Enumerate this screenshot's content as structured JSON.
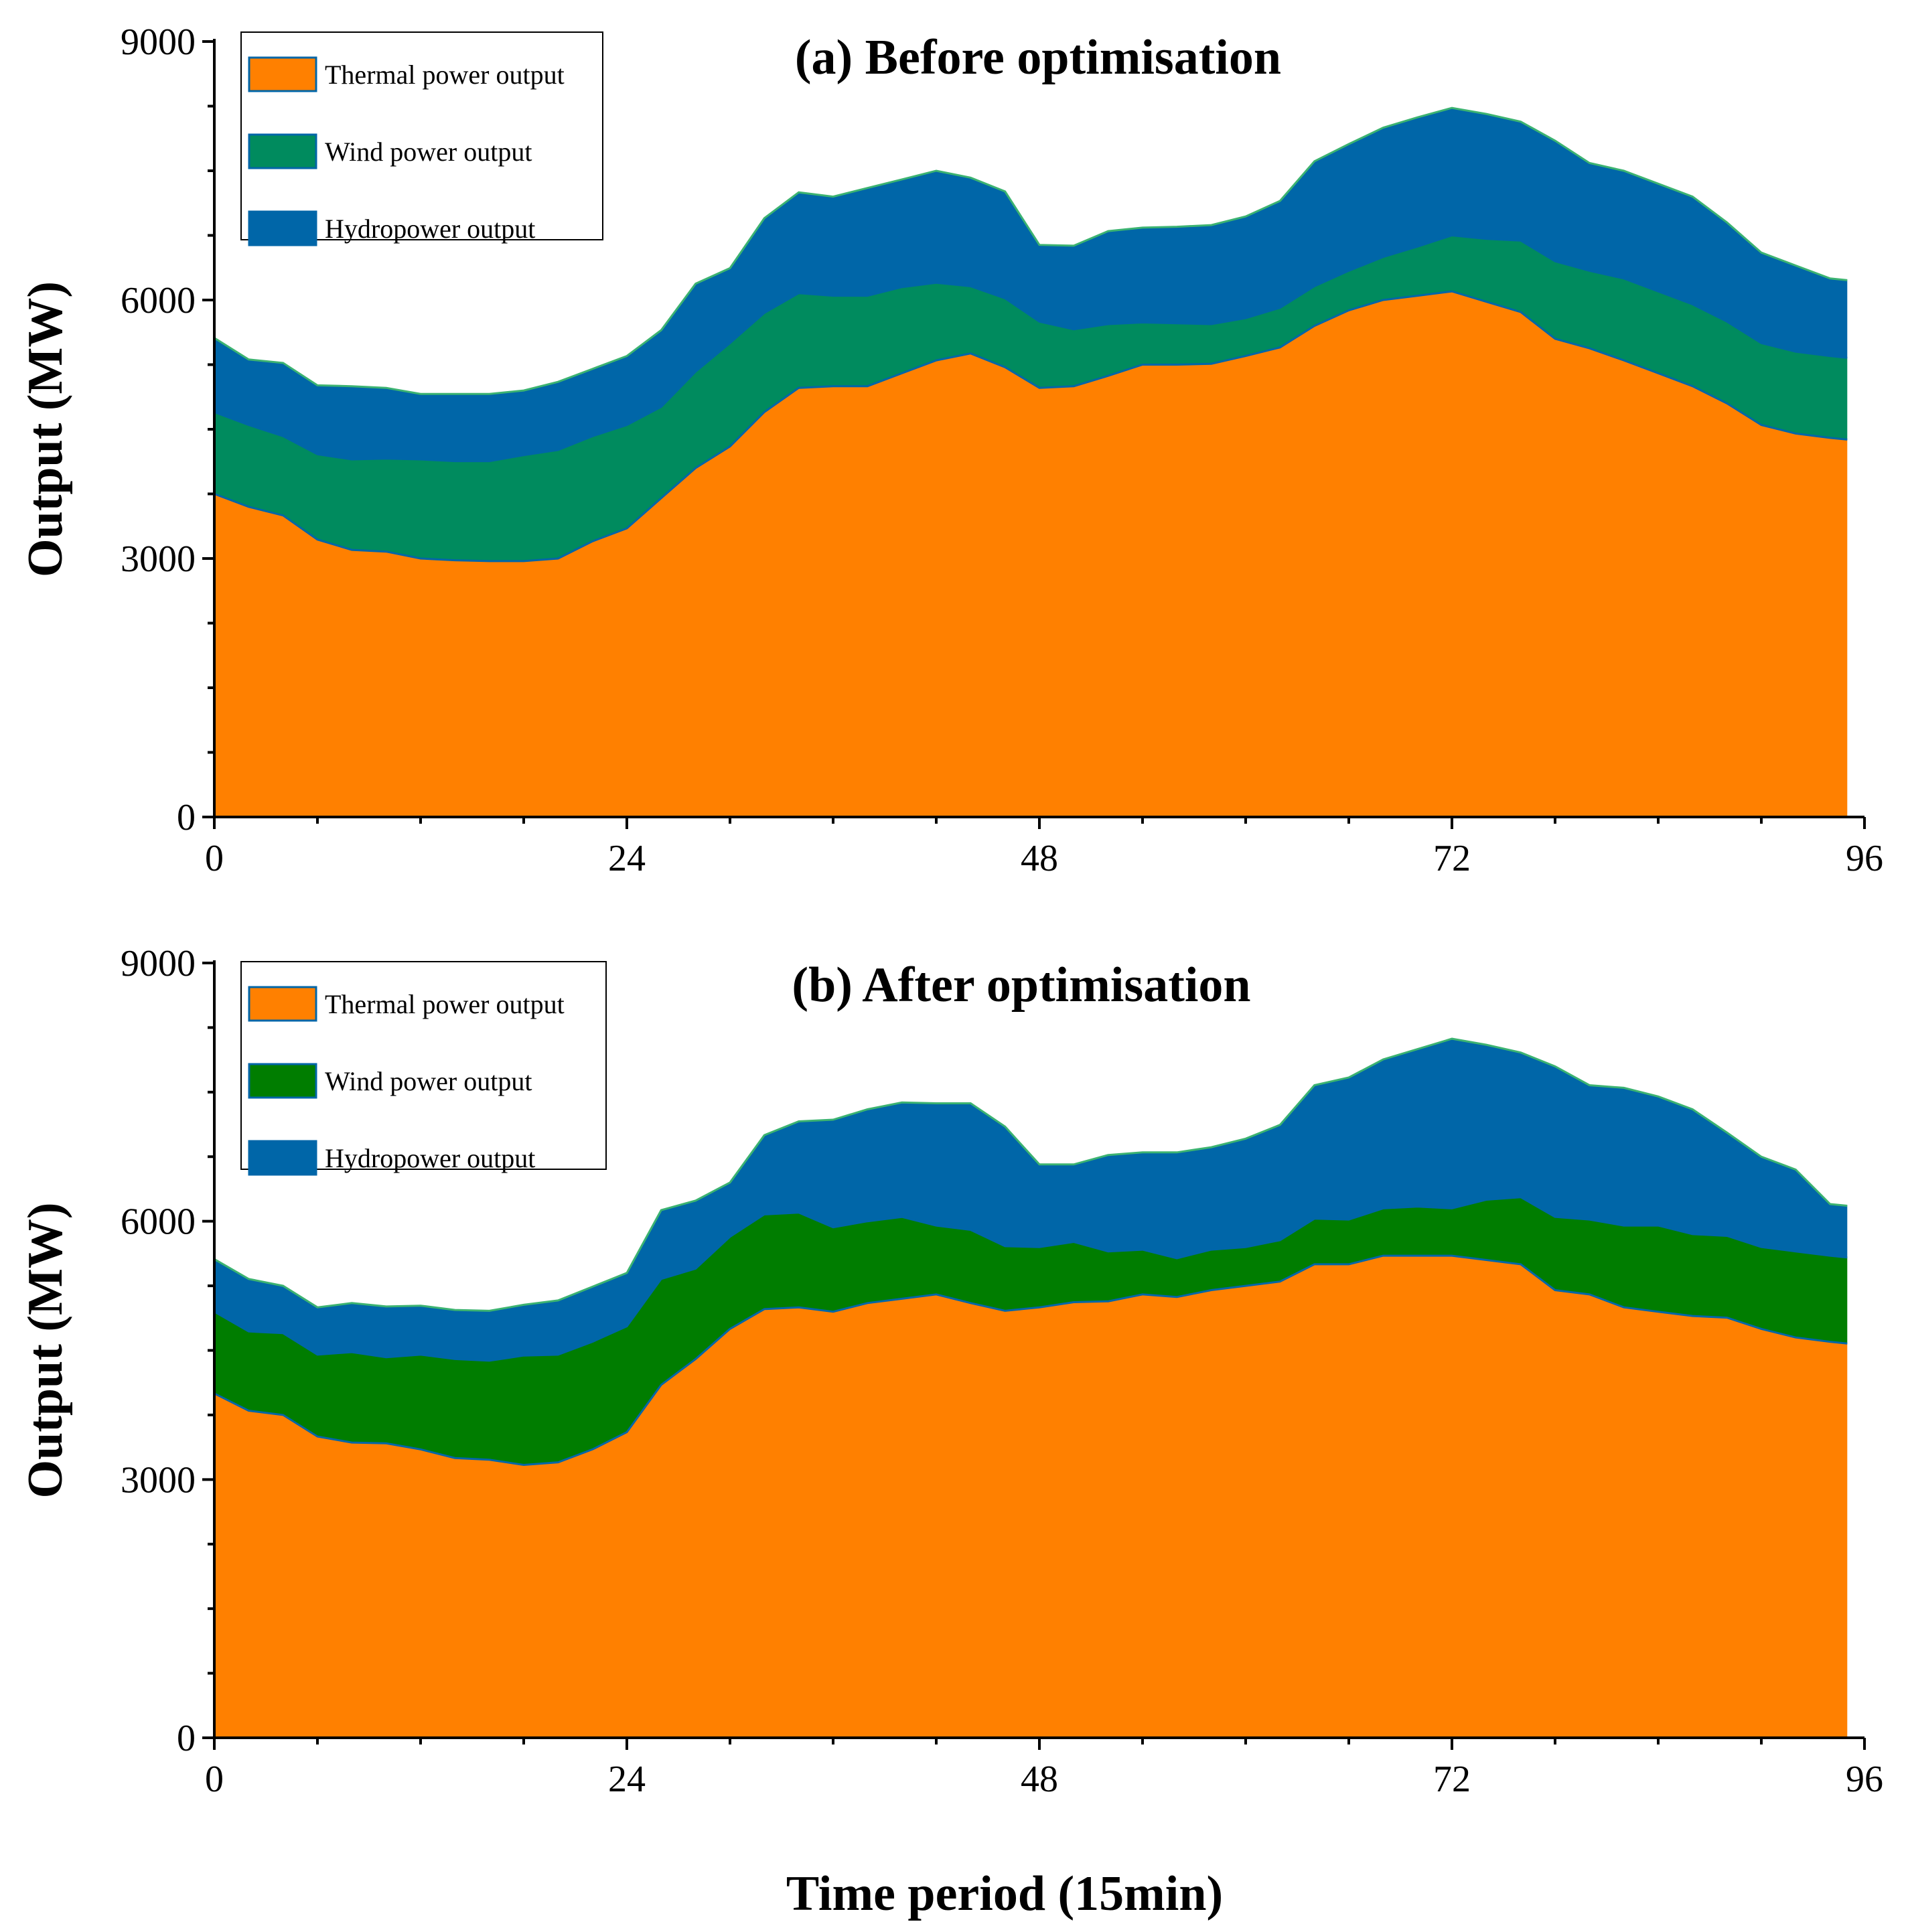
{
  "figure": {
    "xlabel": "Time period (15min)",
    "ylabel": "Output (MW)"
  },
  "legend_labels": [
    "Thermal power output",
    "Wind power output",
    "Hydropower output"
  ],
  "colors": {
    "thermal": "#FF8000",
    "wind_before": "#008B5E",
    "wind_after": "#007D00",
    "hydro": "#0066A8",
    "top_edge": "#3CB371"
  },
  "chart_data": [
    {
      "type": "area",
      "stacked": true,
      "title": "(a) Before optimisation",
      "xlabel": "Time period (15min)",
      "ylabel": "Output (MW)",
      "xlim": [
        0,
        96
      ],
      "ylim": [
        0,
        9000
      ],
      "xticks": [
        0,
        24,
        48,
        72,
        96
      ],
      "yticks": [
        0,
        3000,
        6000,
        9000
      ],
      "grid": false,
      "legend_position": "top-left",
      "x": [
        0,
        2,
        4,
        6,
        8,
        10,
        12,
        14,
        16,
        18,
        20,
        22,
        24,
        26,
        28,
        30,
        32,
        34,
        36,
        38,
        40,
        42,
        44,
        46,
        48,
        50,
        52,
        54,
        56,
        58,
        60,
        62,
        64,
        66,
        68,
        70,
        72,
        74,
        76,
        78,
        80,
        82,
        84,
        86,
        88,
        90,
        92,
        94,
        95
      ],
      "series": [
        {
          "name": "Thermal power output",
          "values": [
            3750,
            3600,
            3500,
            3220,
            3100,
            3080,
            3000,
            2980,
            2970,
            2970,
            3000,
            3200,
            3350,
            3700,
            4050,
            4300,
            4700,
            4980,
            5000,
            5000,
            5150,
            5300,
            5380,
            5220,
            4980,
            5000,
            5120,
            5250,
            5250,
            5260,
            5350,
            5450,
            5700,
            5880,
            6000,
            6050,
            6100,
            5980,
            5860,
            5550,
            5440,
            5300,
            5150,
            5000,
            4800,
            4550,
            4450,
            4400,
            4380
          ]
        },
        {
          "name": "Wind power output",
          "values": [
            950,
            950,
            920,
            990,
            1050,
            1080,
            1150,
            1150,
            1160,
            1230,
            1260,
            1220,
            1200,
            1060,
            1120,
            1200,
            1150,
            1100,
            1050,
            1050,
            1000,
            900,
            780,
            800,
            770,
            660,
            600,
            490,
            480,
            460,
            440,
            460,
            460,
            460,
            500,
            570,
            650,
            730,
            830,
            900,
            900,
            950,
            950,
            950,
            950,
            950,
            950,
            950,
            950
          ]
        },
        {
          "name": "Hydropower output",
          "values": [
            860,
            760,
            850,
            800,
            850,
            820,
            760,
            780,
            780,
            750,
            790,
            780,
            800,
            890,
            1020,
            870,
            1100,
            1170,
            1150,
            1250,
            1250,
            1300,
            1260,
            1240,
            890,
            970,
            1080,
            1100,
            1120,
            1150,
            1180,
            1240,
            1450,
            1470,
            1500,
            1500,
            1480,
            1450,
            1380,
            1400,
            1250,
            1250,
            1250,
            1250,
            1150,
            1050,
            1000,
            900,
            900
          ]
        }
      ]
    },
    {
      "type": "area",
      "stacked": true,
      "title": "(b) After optimisation",
      "xlabel": "Time period (15min)",
      "ylabel": "Output (MW)",
      "xlim": [
        0,
        96
      ],
      "ylim": [
        0,
        9000
      ],
      "xticks": [
        0,
        24,
        48,
        72,
        96
      ],
      "yticks": [
        0,
        3000,
        6000,
        9000
      ],
      "grid": false,
      "legend_position": "top-left",
      "x": [
        0,
        2,
        4,
        6,
        8,
        10,
        12,
        14,
        16,
        18,
        20,
        22,
        24,
        26,
        28,
        30,
        32,
        34,
        36,
        38,
        40,
        42,
        44,
        46,
        48,
        50,
        52,
        54,
        56,
        58,
        60,
        62,
        64,
        66,
        68,
        70,
        72,
        74,
        76,
        78,
        80,
        82,
        84,
        86,
        88,
        90,
        92,
        94,
        95
      ],
      "series": [
        {
          "name": "Thermal power output",
          "values": [
            4000,
            3800,
            3750,
            3500,
            3430,
            3420,
            3350,
            3250,
            3230,
            3170,
            3200,
            3350,
            3550,
            4100,
            4400,
            4750,
            4980,
            5000,
            4950,
            5050,
            5100,
            5150,
            5050,
            4960,
            5000,
            5060,
            5070,
            5150,
            5120,
            5200,
            5250,
            5300,
            5500,
            5500,
            5600,
            5600,
            5600,
            5550,
            5500,
            5200,
            5150,
            5000,
            4950,
            4900,
            4880,
            4750,
            4650,
            4600,
            4580
          ]
        },
        {
          "name": "Wind power output",
          "values": [
            950,
            920,
            950,
            950,
            1050,
            1000,
            1100,
            1150,
            1150,
            1270,
            1250,
            1250,
            1230,
            1230,
            1050,
            1070,
            1100,
            1100,
            980,
            950,
            950,
            800,
            850,
            750,
            700,
            700,
            580,
            520,
            450,
            470,
            450,
            480,
            530,
            520,
            550,
            570,
            550,
            700,
            780,
            850,
            870,
            950,
            1000,
            950,
            950,
            950,
            1000,
            1000,
            1000
          ]
        },
        {
          "name": "Hydropower output",
          "values": [
            610,
            610,
            550,
            550,
            570,
            590,
            570,
            570,
            580,
            590,
            630,
            640,
            620,
            800,
            790,
            630,
            920,
            1060,
            1250,
            1300,
            1330,
            1420,
            1470,
            1390,
            960,
            900,
            1120,
            1130,
            1230,
            1190,
            1260,
            1340,
            1550,
            1650,
            1730,
            1830,
            1970,
            1800,
            1680,
            1750,
            1560,
            1600,
            1500,
            1450,
            1200,
            1050,
            950,
            600,
            600
          ]
        }
      ]
    }
  ]
}
